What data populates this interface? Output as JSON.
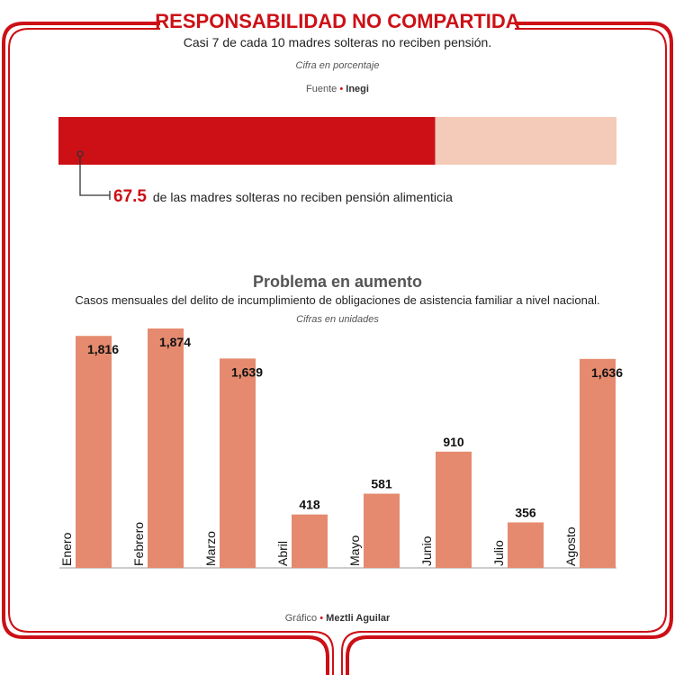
{
  "header": {
    "title": "RESPONSABILIDAD NO COMPARTIDA",
    "subtitle": "Casi 7 de cada 10 madres solteras no reciben pensión.",
    "unit_note": "Cifra en porcentaje",
    "source_label": "Fuente",
    "source_name": "Inegi"
  },
  "footer": {
    "credit_label": "Gráfico",
    "credit_name": "Meztli Aguilar"
  },
  "colors": {
    "brand_red": "#cc1016",
    "remainder": "#f4cbb8",
    "bar": "#e58a6e",
    "text": "#222222",
    "muted": "#555555"
  },
  "chart_data": [
    {
      "type": "bar",
      "orientation": "horizontal-stacked",
      "values": [
        67.5,
        32.5
      ],
      "xlim": [
        0,
        100
      ],
      "annotation_value": "67.5",
      "annotation_text": "de las madres solteras no reciben pensión alimenticia"
    },
    {
      "type": "bar",
      "title": "Problema en aumento",
      "subtitle": "Casos mensuales del delito de incumplimiento de obligaciones de asistencia familiar a nivel nacional.",
      "unit_note": "Cifras en unidades",
      "categories": [
        "Enero",
        "Febrero",
        "Marzo",
        "Abril",
        "Mayo",
        "Junio",
        "Julio",
        "Agosto"
      ],
      "values": [
        1816,
        1874,
        1639,
        418,
        581,
        910,
        356,
        1636
      ],
      "value_labels": [
        "1,816",
        "1,874",
        "1,639",
        "418",
        "581",
        "910",
        "356",
        "1,636"
      ],
      "ylim": [
        0,
        1874
      ],
      "grid": false
    }
  ]
}
